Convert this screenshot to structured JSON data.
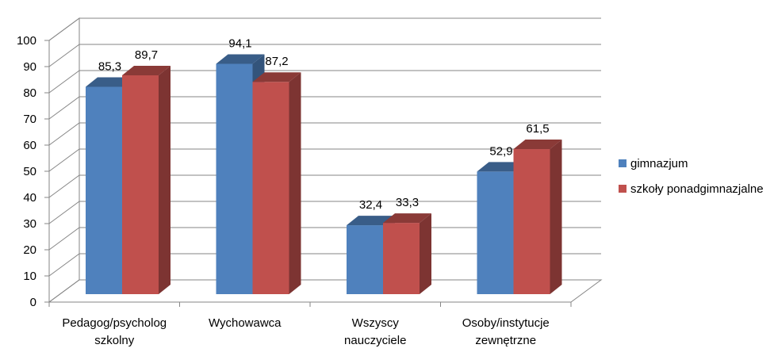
{
  "chart_data": {
    "type": "bar",
    "categories": [
      [
        "Pedagog/psycholog",
        "szkolny"
      ],
      [
        "Wychowawca"
      ],
      [
        "Wszyscy",
        "nauczyciele"
      ],
      [
        "Osoby/instytucje",
        "zewnętrzne"
      ]
    ],
    "series": [
      {
        "name": "gimnazjum",
        "values": [
          85.3,
          94.1,
          32.4,
          52.9
        ],
        "labels": [
          "85,3",
          "94,1",
          "32,4",
          "52,9"
        ],
        "color": "#4F81BD"
      },
      {
        "name": "szkoły ponadgimnazjalne",
        "values": [
          89.7,
          87.2,
          33.3,
          61.5
        ],
        "labels": [
          "89,7",
          "87,2",
          "33,3",
          "61,5"
        ],
        "color": "#C0504D"
      }
    ],
    "ylim": [
      0,
      100
    ],
    "yticks": [
      0,
      10,
      20,
      30,
      40,
      50,
      60,
      70,
      80,
      90,
      100
    ],
    "grid": true,
    "legend": "right",
    "three_d": true
  }
}
